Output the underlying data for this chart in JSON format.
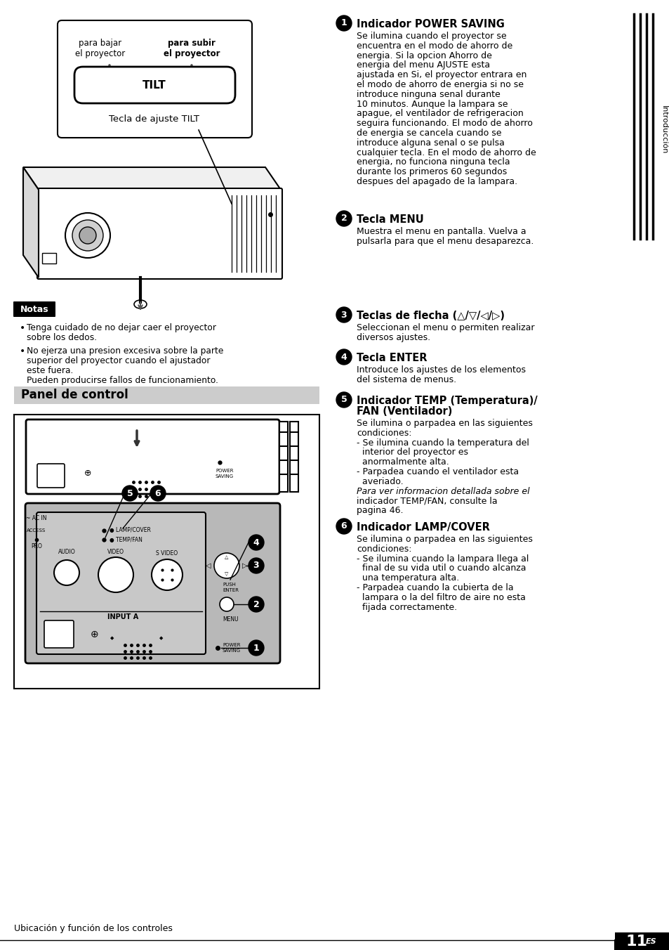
{
  "page_bg": "#ffffff",
  "title_section": "Panel de control",
  "notas_title": "Notas",
  "notas_bullets": [
    "Tenga cuidado de no dejar caer el proyector\nsobre los dedos.",
    "No ejerza una presion excesiva sobre la parte\nsuperior del proyector cuando el ajustador\neste fuera.\nPueden producirse fallos de funcionamiento."
  ],
  "tilt_label_left": "para bajar\nel proyector",
  "tilt_label_right": "para subir\nel proyector",
  "tilt_button_label": "TILT",
  "tilt_caption": "Tecla de ajuste TILT",
  "sections": [
    {
      "num": "1",
      "title": "Indicador POWER SAVING",
      "body": "Se ilumina cuando el proyector se\nencuentra en el modo de ahorro de\nenergia. Si la opcion Ahorro de\nenergia del menu AJUSTE esta\najustada en Si, el proyector entrara en\nel modo de ahorro de energia si no se\nintroduce ninguna senal durante\n10 minutos. Aunque la lampara se\napague, el ventilador de refrigeracion\nseguira funcionando. El modo de ahorro\nde energia se cancela cuando se\nintroduce alguna senal o se pulsa\ncualquier tecla. En el modo de ahorro de\nenergia, no funciona ninguna tecla\ndurante los primeros 60 segundos\ndespues del apagado de la lampara."
    },
    {
      "num": "2",
      "title": "Tecla MENU",
      "body": "Muestra el menu en pantalla. Vuelva a\npulsarla para que el menu desaparezca."
    },
    {
      "num": "3",
      "title": "Teclas de flecha",
      "body": "Seleccionan el menu o permiten realizar\ndiversos ajustes."
    },
    {
      "num": "4",
      "title": "Tecla ENTER",
      "body": "Introduce los ajustes de los elementos\ndel sistema de menus."
    },
    {
      "num": "5",
      "title_line1": "Indicador TEMP (Temperatura)/",
      "title_line2": "FAN (Ventilador)",
      "body": "Se ilumina o parpadea en las siguientes\ncondiciones:\n- Se ilumina cuando la temperatura del\n  interior del proyector es\n  anormalmente alta.\n- Parpadea cuando el ventilador esta\n  averiado.\nPara ver informacion detallada sobre el\nindicador TEMP/FAN, consulte la\npagina 46."
    },
    {
      "num": "6",
      "title": "Indicador LAMP/COVER",
      "body": "Se ilumina o parpadea en las siguientes\ncondiciones:\n- Se ilumina cuando la lampara llega al\n  final de su vida util o cuando alcanza\n  una temperatura alta.\n- Parpadea cuando la cubierta de la\n  lampara o la del filtro de aire no esta\n  fijada correctamente."
    }
  ],
  "sidebar_text": "Introducción",
  "footer_text": "Ubicación y función de los controles",
  "footer_page": "11",
  "footer_lang": "ES"
}
